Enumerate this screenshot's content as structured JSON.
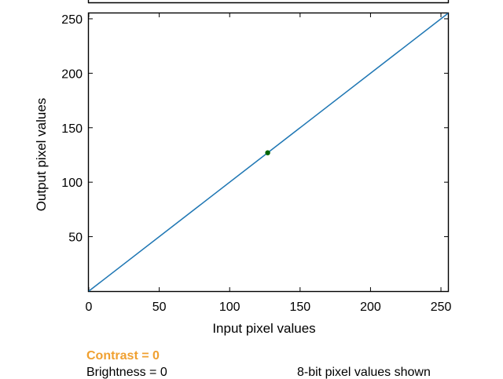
{
  "chart_data": {
    "type": "line",
    "xlabel": "Input pixel values",
    "ylabel": "Output pixel values",
    "xlim": [
      0,
      255
    ],
    "ylim": [
      0,
      255
    ],
    "x_ticks": [
      0,
      50,
      100,
      150,
      200,
      250
    ],
    "y_ticks": [
      50,
      100,
      150,
      200,
      250
    ],
    "grid": false,
    "series": [
      {
        "color": "#1f77b4",
        "x": [
          0,
          255
        ],
        "y": [
          0,
          255
        ]
      }
    ],
    "points": [
      {
        "x": 127,
        "y": 127,
        "color": "#006400"
      }
    ]
  },
  "status": {
    "contrast": "Contrast = 0",
    "brightness": "Brightness = 0",
    "note": "8-bit pixel values shown"
  },
  "colors": {
    "contrast_text": "#f0a030",
    "axis": "#000000"
  }
}
